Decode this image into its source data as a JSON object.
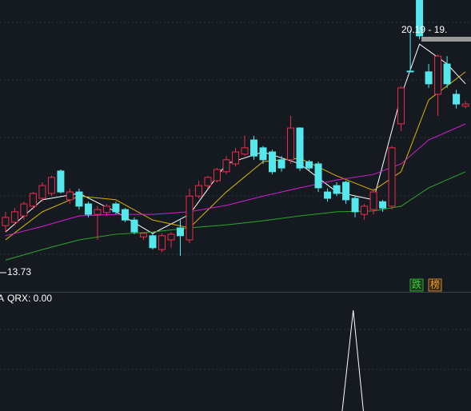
{
  "chart_data": [
    {
      "type": "candlestick",
      "xlim": [
        -0.6,
        50.6
      ],
      "ylim": [
        13.2,
        21.0
      ],
      "up_color": "#ee2b4b",
      "down_color": "#54e8ec",
      "open": [
        14.97,
        15.06,
        15.23,
        15.49,
        15.7,
        15.83,
        16.43,
        15.66,
        15.87,
        15.55,
        15.27,
        15.32,
        15.55,
        15.4,
        15.12,
        14.67,
        14.7,
        14.33,
        14.59,
        14.91,
        14.59,
        15.76,
        16.04,
        16.17,
        16.41,
        16.62,
        16.88,
        17.26,
        17.05,
        16.94,
        16.73,
        16.73,
        17.58,
        16.68,
        16.62,
        15.87,
        16.04,
        16.13,
        15.7,
        15.27,
        15.4,
        15.61,
        15.49,
        17.69,
        19.1,
        21.0,
        19.08,
        18.48,
        19.29,
        18.48,
        18.16
      ],
      "high": [
        15.34,
        15.44,
        15.61,
        15.87,
        16.13,
        16.3,
        16.47,
        15.96,
        15.96,
        15.61,
        15.49,
        15.55,
        15.61,
        15.44,
        15.19,
        14.8,
        14.76,
        14.76,
        14.8,
        15.12,
        15.96,
        16.17,
        16.3,
        16.51,
        16.83,
        17.05,
        17.37,
        17.37,
        17.1,
        17.0,
        16.83,
        17.9,
        17.6,
        16.73,
        16.68,
        15.96,
        16.13,
        16.17,
        15.76,
        15.55,
        15.96,
        15.66,
        17.1,
        18.7,
        20.19,
        21.0,
        19.29,
        19.55,
        19.5,
        18.6,
        18.3
      ],
      "low": [
        14.8,
        14.97,
        15.12,
        15.4,
        15.61,
        15.76,
        15.83,
        15.55,
        15.4,
        15.19,
        14.59,
        15.23,
        15.27,
        15.06,
        14.74,
        14.59,
        14.33,
        14.26,
        14.38,
        14.16,
        14.5,
        15.7,
        15.96,
        16.13,
        16.34,
        16.55,
        16.83,
        16.73,
        16.62,
        16.34,
        16.41,
        16.62,
        16.43,
        16.43,
        15.87,
        15.61,
        15.76,
        15.55,
        15.19,
        15.12,
        15.27,
        15.34,
        15.4,
        17.5,
        19.08,
        19.95,
        18.65,
        17.9,
        18.65,
        18.1,
        18.1
      ],
      "close": [
        15.19,
        15.34,
        15.55,
        15.83,
        16.04,
        16.26,
        15.87,
        15.87,
        15.49,
        15.27,
        15.4,
        15.49,
        15.34,
        15.12,
        14.8,
        14.76,
        14.38,
        14.7,
        14.74,
        14.7,
        15.76,
        16.04,
        16.26,
        16.47,
        16.73,
        16.94,
        17.05,
        16.83,
        16.73,
        16.41,
        16.51,
        17.58,
        16.51,
        16.51,
        15.98,
        15.7,
        15.83,
        15.66,
        15.34,
        15.49,
        15.87,
        15.44,
        17.05,
        18.65,
        19.08,
        20.04,
        18.76,
        19.5,
        18.76,
        18.22,
        18.22
      ],
      "series": [
        {
          "color": "#ffffff",
          "x": [
            0,
            4,
            8,
            12,
            16,
            20,
            24,
            28,
            32,
            36,
            40,
            43,
            45,
            48,
            50
          ],
          "values": [
            14.8,
            15.66,
            15.83,
            15.34,
            14.76,
            15.27,
            16.62,
            16.94,
            16.62,
            15.87,
            15.66,
            18.44,
            19.82,
            19.29,
            18.76
          ]
        },
        {
          "color": "#d8b400",
          "x": [
            0,
            4,
            8,
            12,
            16,
            20,
            24,
            28,
            32,
            36,
            40,
            43,
            46,
            50
          ],
          "values": [
            14.59,
            15.34,
            15.76,
            15.66,
            15.12,
            14.91,
            15.87,
            16.68,
            16.77,
            16.3,
            15.91,
            16.41,
            18.33,
            19.08
          ]
        },
        {
          "color": "#d21fd2",
          "x": [
            0,
            4,
            8,
            12,
            16,
            20,
            24,
            28,
            32,
            36,
            40,
            43,
            46,
            50
          ],
          "values": [
            14.7,
            14.95,
            15.23,
            15.27,
            15.27,
            15.34,
            15.51,
            15.76,
            15.98,
            16.19,
            16.34,
            16.62,
            17.26,
            17.69
          ]
        },
        {
          "color": "#2aa82a",
          "x": [
            0,
            4,
            8,
            12,
            16,
            20,
            24,
            28,
            32,
            36,
            40,
            43,
            46,
            50
          ],
          "values": [
            14.05,
            14.33,
            14.59,
            14.74,
            14.8,
            14.91,
            14.99,
            15.1,
            15.23,
            15.34,
            15.36,
            15.49,
            15.98,
            16.41
          ]
        }
      ],
      "high_label": "20.19 - 19.",
      "low_label": "13.73",
      "badges": [
        "跌",
        "榜"
      ]
    },
    {
      "type": "line",
      "cut_label": "A",
      "title": "QRX: 0.00",
      "color": "#ffffff",
      "xlim": [
        -0.6,
        50.6
      ],
      "ylim": [
        0,
        1
      ],
      "x": [
        36.6,
        37.8,
        38.9
      ],
      "values": [
        0,
        1,
        0
      ]
    }
  ]
}
